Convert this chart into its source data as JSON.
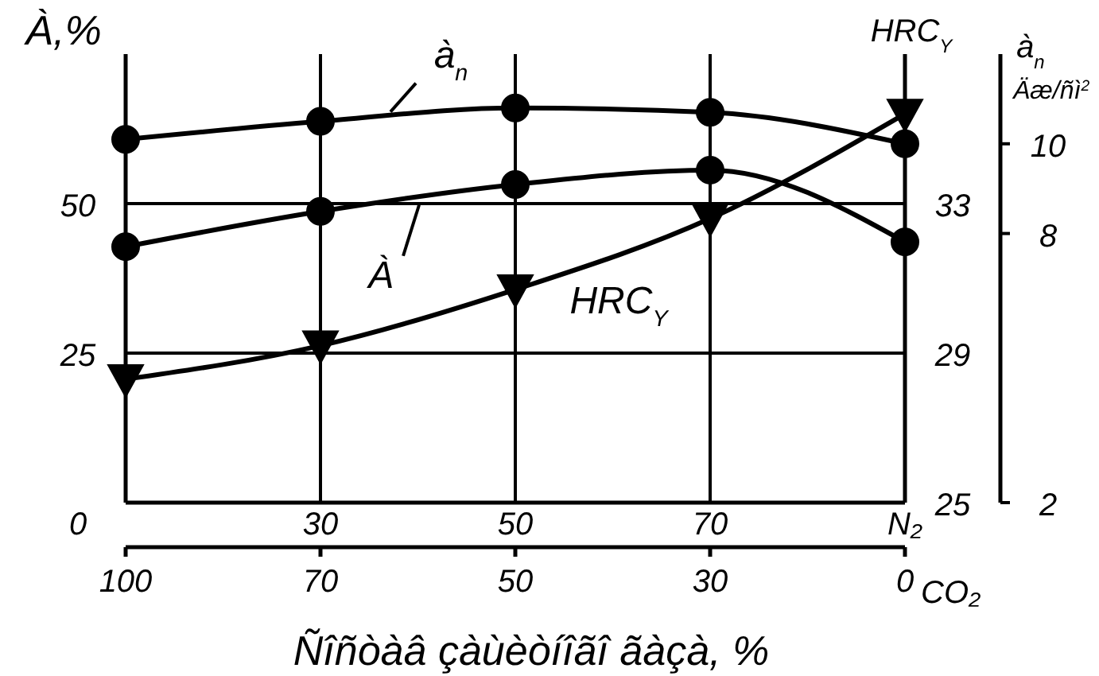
{
  "chart_data": {
    "type": "line",
    "xlabel": "Ñîñòàâ çàùèòíîãî ãàçà, %",
    "ylabel": "À,%",
    "y2label": "HRC$_{Y}$",
    "y3label": "à$_{n}$ Äæ/ñì$^{2}$",
    "categories": [
      null,
      "30",
      "50",
      "70",
      "N₂"
    ],
    "annotations": [
      "100",
      "70",
      "50",
      "30",
      "0",
      "CO₂"
    ],
    "ylim": [
      0,
      75
    ],
    "yticks": [
      0,
      25,
      50
    ],
    "y2lim": [
      25,
      37
    ],
    "y2ticks": [
      25,
      29,
      33
    ],
    "y3lim": [
      2,
      12
    ],
    "y3ticks": [
      2,
      8,
      10
    ],
    "grid": true,
    "line_style": "solid",
    "series": [
      {
        "name": "À",
        "color": "#000000",
        "marker": "circle",
        "values": [
          42.8,
          48.7,
          53.2,
          55.6,
          43.6
        ]
      },
      {
        "name": "à$_{n}$",
        "color": "#000000",
        "marker": "circle",
        "axis": "y3",
        "values": [
          10.1,
          10.5,
          10.8,
          10.7,
          10.0
        ]
      },
      {
        "name": "HRC$_{Y}$",
        "color": "#000000",
        "marker": "triangle",
        "axis": "y2",
        "values": [
          28.3,
          29.2,
          30.7,
          32.6,
          35.4
        ]
      }
    ]
  }
}
